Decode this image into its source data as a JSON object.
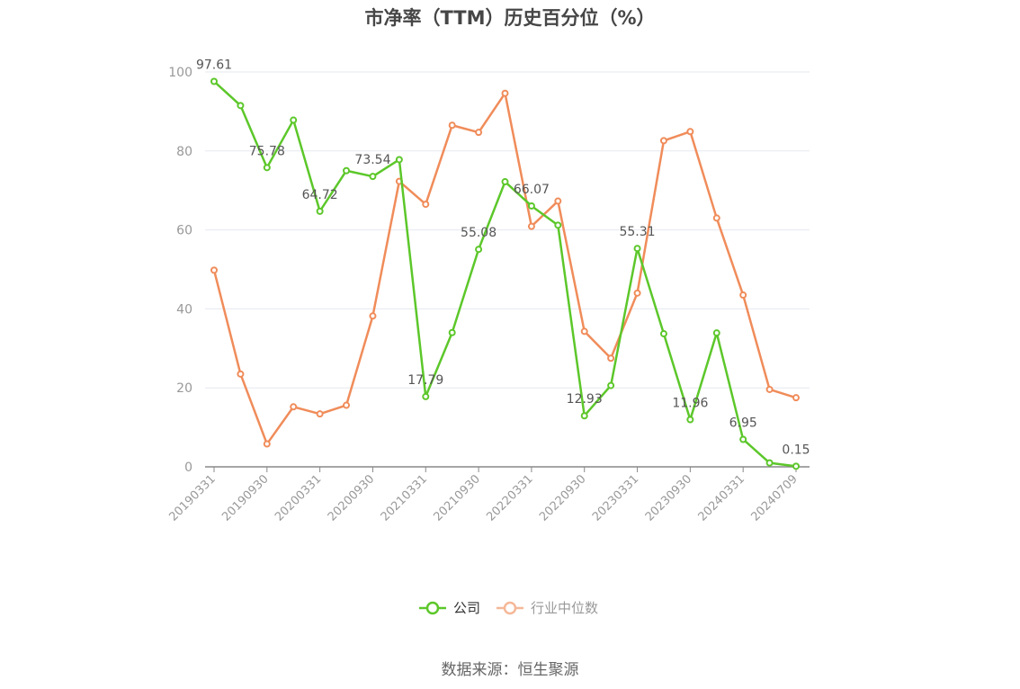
{
  "source": "数据来源：恒生聚源",
  "colors": {
    "company": "#5cc72a",
    "industry": "#f08c5a",
    "industry_legend": "#f5b898",
    "grid": "#e6e8f0",
    "axis": "#888888"
  },
  "chart_data": {
    "type": "line",
    "title": "市净率（TTM）历史百分位（%）",
    "xlabel": "",
    "ylabel": "",
    "ylim": [
      0,
      100
    ],
    "yticks": [
      0,
      20,
      40,
      60,
      80,
      100
    ],
    "grid": true,
    "legend_position": "bottom-center",
    "x": [
      "20190331",
      "20190630",
      "20190930",
      "20191231",
      "20200331",
      "20200630",
      "20200930",
      "20201231",
      "20210331",
      "20210630",
      "20210930",
      "20211231",
      "20220331",
      "20220630",
      "20220930",
      "20221231",
      "20230331",
      "20230630",
      "20230930",
      "20231231",
      "20240331",
      "20240630",
      "20240709"
    ],
    "x_tick_labels": [
      "20190331",
      "20190930",
      "20200331",
      "20200930",
      "20210331",
      "20210930",
      "20220331",
      "20220930",
      "20230331",
      "20230930",
      "20240331",
      "20240709"
    ],
    "series": [
      {
        "name": "公司",
        "values": [
          97.61,
          91.5,
          75.78,
          87.8,
          64.72,
          75.0,
          73.54,
          77.8,
          17.79,
          34.0,
          55.08,
          72.2,
          66.07,
          61.2,
          12.93,
          20.6,
          55.31,
          33.7,
          11.96,
          33.9,
          6.95,
          1.0,
          0.15
        ],
        "data_labels": {
          "0": "97.61",
          "2": "75.78",
          "4": "64.72",
          "6": "73.54",
          "8": "17.79",
          "10": "55.08",
          "12": "66.07",
          "14": "12.93",
          "16": "55.31",
          "18": "11.96",
          "20": "6.95",
          "22": "0.15"
        }
      },
      {
        "name": "行业中位数",
        "values": [
          49.8,
          23.5,
          5.8,
          15.2,
          13.4,
          15.6,
          38.2,
          72.3,
          66.5,
          86.5,
          84.7,
          94.6,
          60.9,
          67.3,
          34.3,
          27.5,
          44.0,
          82.6,
          84.9,
          63.0,
          43.5,
          19.6,
          17.5
        ]
      }
    ]
  }
}
